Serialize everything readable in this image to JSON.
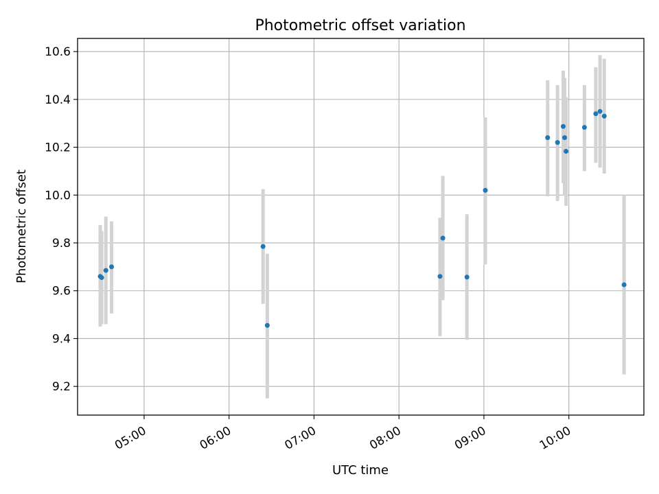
{
  "chart_data": {
    "type": "scatter",
    "title": "Photometric offset variation",
    "xlabel": "UTC time",
    "ylabel": "Photometric offset",
    "grid": true,
    "x_axis_kind": "time",
    "xlim": [
      "04:13",
      "10:53"
    ],
    "ylim": [
      9.08,
      10.655
    ],
    "x_ticks": [
      "05:00",
      "06:00",
      "07:00",
      "08:00",
      "09:00",
      "10:00"
    ],
    "y_ticks": [
      9.2,
      9.4,
      9.6,
      9.8,
      10.0,
      10.2,
      10.4,
      10.6
    ],
    "y_tick_labels": [
      "9.2",
      "9.4",
      "9.6",
      "9.8",
      "10.0",
      "10.2",
      "10.4",
      "10.6"
    ],
    "marker_color": "#1f77b4",
    "errorbar_color": "#d3d3d3",
    "points": [
      {
        "time": "04:29",
        "y": 9.66,
        "y_low": 9.45,
        "y_high": 9.875
      },
      {
        "time": "04:30",
        "y": 9.655,
        "y_low": 9.46,
        "y_high": 9.85
      },
      {
        "time": "04:33",
        "y": 9.685,
        "y_low": 9.46,
        "y_high": 9.91
      },
      {
        "time": "04:37",
        "y": 9.7,
        "y_low": 9.505,
        "y_high": 9.89
      },
      {
        "time": "06:24",
        "y": 9.785,
        "y_low": 9.545,
        "y_high": 10.025
      },
      {
        "time": "06:27",
        "y": 9.455,
        "y_low": 9.15,
        "y_high": 9.755
      },
      {
        "time": "08:29",
        "y": 9.66,
        "y_low": 9.41,
        "y_high": 9.905
      },
      {
        "time": "08:31",
        "y": 9.82,
        "y_low": 9.56,
        "y_high": 10.08
      },
      {
        "time": "08:48",
        "y": 9.657,
        "y_low": 9.395,
        "y_high": 9.92
      },
      {
        "time": "09:01",
        "y": 10.02,
        "y_low": 9.71,
        "y_high": 10.325
      },
      {
        "time": "09:45",
        "y": 10.24,
        "y_low": 9.995,
        "y_high": 10.48
      },
      {
        "time": "09:52",
        "y": 10.22,
        "y_low": 9.975,
        "y_high": 10.46
      },
      {
        "time": "09:56",
        "y": 10.287,
        "y_low": 10.05,
        "y_high": 10.52
      },
      {
        "time": "09:57",
        "y": 10.24,
        "y_low": 10.0,
        "y_high": 10.49
      },
      {
        "time": "09:58",
        "y": 10.183,
        "y_low": 9.955,
        "y_high": 10.41
      },
      {
        "time": "10:11",
        "y": 10.283,
        "y_low": 10.1,
        "y_high": 10.46
      },
      {
        "time": "10:19",
        "y": 10.34,
        "y_low": 10.135,
        "y_high": 10.535
      },
      {
        "time": "10:22",
        "y": 10.35,
        "y_low": 10.115,
        "y_high": 10.585
      },
      {
        "time": "10:25",
        "y": 10.33,
        "y_low": 10.09,
        "y_high": 10.57
      },
      {
        "time": "10:39",
        "y": 9.625,
        "y_low": 9.25,
        "y_high": 10.0
      }
    ]
  }
}
